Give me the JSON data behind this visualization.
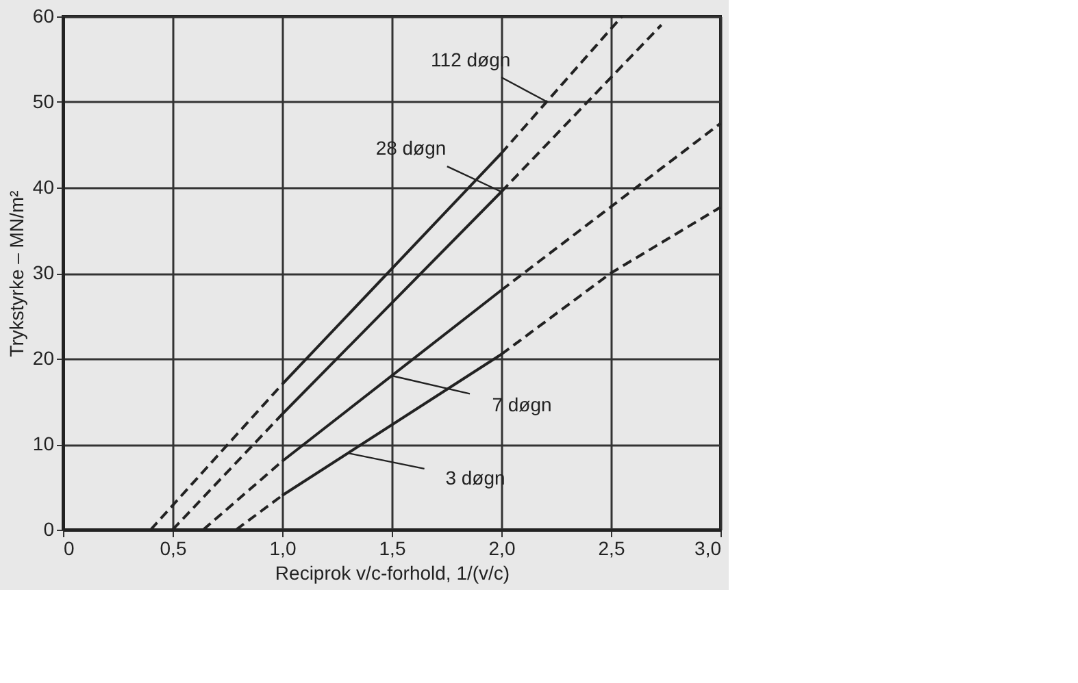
{
  "chart_data": {
    "type": "line",
    "xlabel": "Reciprok v/c-forhold, 1/(v/c)",
    "ylabel": "Trykstyrke – MN/m²",
    "xlim": [
      0,
      3.0
    ],
    "xticks": [
      0,
      {
        "value": 0.5,
        "label": "0,5"
      },
      {
        "value": 1.0,
        "label": "1,0"
      },
      {
        "value": 1.5,
        "label": "1,5"
      },
      {
        "value": 2.0,
        "label": "2,0"
      },
      {
        "value": 2.5,
        "label": "2,5"
      },
      {
        "value": 3.0,
        "label": "3,0"
      }
    ],
    "ylim": [
      0,
      60
    ],
    "yticks": [
      0,
      10,
      20,
      30,
      40,
      50,
      60
    ],
    "grid": true,
    "series": [
      {
        "color": "#222222",
        "line_style": "dashed",
        "x": [
          0.4,
          1.0
        ],
        "values": [
          0,
          17
        ]
      },
      {
        "color": "#222222",
        "line_style": "solid",
        "x": [
          1.0,
          2.0
        ],
        "values": [
          17,
          44
        ]
      },
      {
        "color": "#222222",
        "line_style": "dashed",
        "x": [
          2.0,
          2.55
        ],
        "values": [
          44,
          60
        ]
      },
      {
        "color": "#222222",
        "line_style": "dashed",
        "x": [
          0.5,
          1.0
        ],
        "values": [
          0,
          13.5
        ]
      },
      {
        "color": "#222222",
        "line_style": "solid",
        "x": [
          1.0,
          2.0
        ],
        "values": [
          13.5,
          39.5
        ]
      },
      {
        "color": "#222222",
        "line_style": "dashed",
        "x": [
          2.0,
          2.73
        ],
        "values": [
          39.5,
          59
        ]
      },
      {
        "color": "#222222",
        "line_style": "dashed",
        "x": [
          0.64,
          1.0
        ],
        "values": [
          0,
          8
        ]
      },
      {
        "color": "#222222",
        "line_style": "solid",
        "x": [
          1.0,
          2.0
        ],
        "values": [
          8,
          28
        ]
      },
      {
        "color": "#222222",
        "line_style": "dashed",
        "x": [
          2.0,
          3.0
        ],
        "values": [
          28,
          47.5
        ]
      },
      {
        "color": "#222222",
        "line_style": "dashed",
        "x": [
          0.79,
          1.0
        ],
        "values": [
          0,
          4
        ]
      },
      {
        "color": "#222222",
        "line_style": "solid",
        "x": [
          1.0,
          2.0
        ],
        "values": [
          4,
          20.5
        ]
      },
      {
        "color": "#222222",
        "line_style": "dashed",
        "x": [
          2.0,
          2.5,
          3.0
        ],
        "values": [
          20.5,
          30,
          37.7
        ]
      }
    ],
    "annotations": [
      {
        "text": "112 døgn",
        "x": 2.21,
        "y": 50
      },
      {
        "text": "28 døgn",
        "x": 2.0,
        "y": 39.5
      },
      {
        "text": "7 døgn",
        "x": 1.5,
        "y": 18
      },
      {
        "text": "3 døgn",
        "x": 1.3,
        "y": 8.95
      }
    ]
  }
}
